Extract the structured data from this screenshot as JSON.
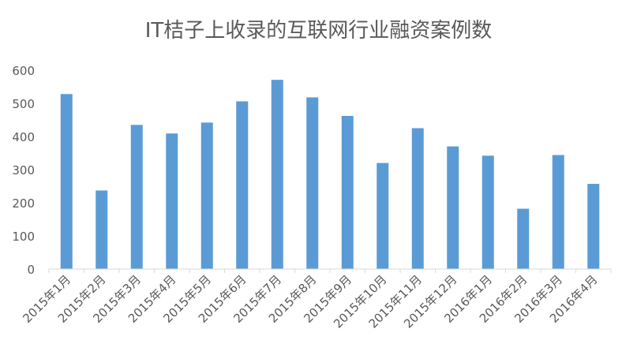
{
  "chart_data": {
    "type": "bar",
    "title": "IT桔子上收录的互联网行业融资案例数",
    "xlabel": "",
    "ylabel": "",
    "categories": [
      "2015年1月",
      "2015年2月",
      "2015年3月",
      "2015年4月",
      "2015年5月",
      "2015年6月",
      "2015年7月",
      "2015年8月",
      "2015年9月",
      "2015年10月",
      "2015年11月",
      "2015年12月",
      "2016年1月",
      "2016年2月",
      "2016年3月",
      "2016年4月"
    ],
    "values": [
      528,
      237,
      435,
      409,
      442,
      506,
      571,
      518,
      462,
      320,
      425,
      370,
      342,
      182,
      344,
      257
    ],
    "ylim": [
      0,
      600
    ],
    "yticks": [
      0,
      100,
      200,
      300,
      400,
      500,
      600
    ],
    "grid": false,
    "legend": "none",
    "bar_color": "#5b9bd5",
    "axis_color": "#d9d9d9",
    "text_color": "#595959"
  }
}
